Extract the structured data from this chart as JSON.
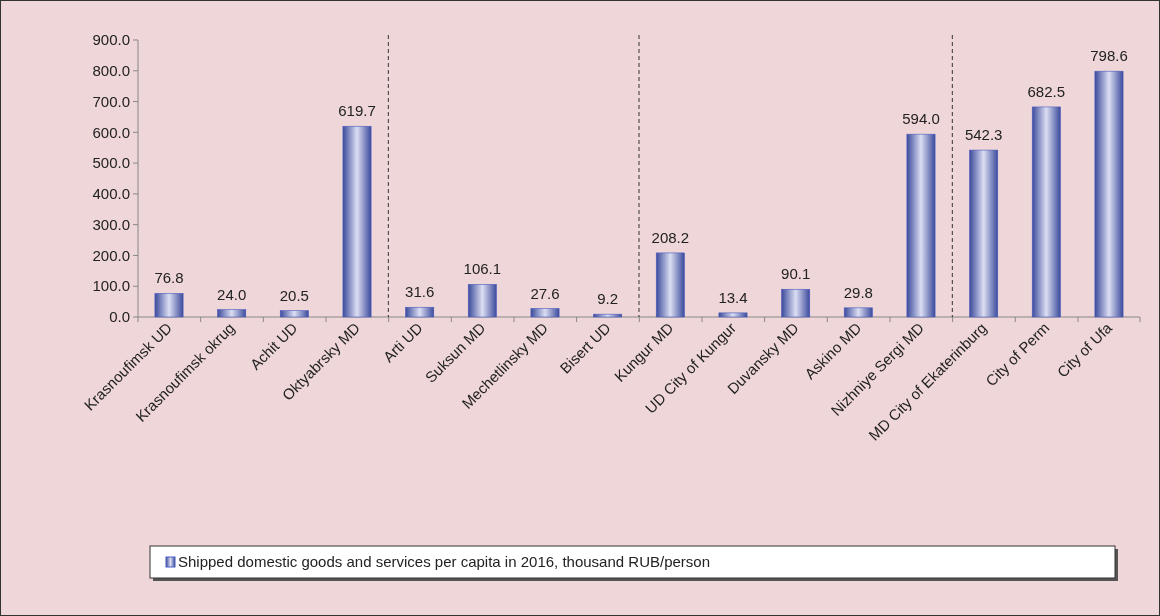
{
  "chart_data": {
    "type": "bar",
    "categories": [
      "Krasnoufimsk UD",
      "Krasnoufimsk okrug",
      "Achit UD",
      "Oktyabrsky MD",
      "Arti UD",
      "Suksun MD",
      "Mechetlinsky MD",
      "Bisert UD",
      "Kungur MD",
      "UD City of Kungur",
      "Duvansky MD",
      "Askino MD",
      "Nizhniye Sergi MD",
      "MD City of Ekaterinburg",
      "City of Perm",
      "City of Ufa"
    ],
    "series": [
      {
        "name": "Shipped domestic goods and services per capita  in 2016, thousand RUB/person",
        "color": "#4a5cc0",
        "values": [
          76.8,
          24.0,
          20.5,
          619.7,
          31.6,
          106.1,
          27.6,
          9.2,
          208.2,
          13.4,
          90.1,
          29.8,
          594.0,
          542.3,
          682.5,
          798.6
        ]
      }
    ],
    "value_labels": [
      "76.8",
      "24.0",
      "20.5",
      "619.7",
      "31.6",
      "106.1",
      "27.6",
      "9.2",
      "208.2",
      "13.4",
      "90.1",
      "29.8",
      "594.0",
      "542.3",
      "682.5",
      "798.6"
    ],
    "ylim": [
      0,
      900
    ],
    "yticks": [
      {
        "value": 0,
        "label": "0.0"
      },
      {
        "value": 100,
        "label": "100.0"
      },
      {
        "value": 200,
        "label": "200.0"
      },
      {
        "value": 300,
        "label": "300.0"
      },
      {
        "value": 400,
        "label": "400.0"
      },
      {
        "value": 500,
        "label": "500.0"
      },
      {
        "value": 600,
        "label": "600.0"
      },
      {
        "value": 700,
        "label": "700.0"
      },
      {
        "value": 800,
        "label": "800.0"
      },
      {
        "value": 900,
        "label": "900.0"
      }
    ],
    "legend": "bottom"
  }
}
